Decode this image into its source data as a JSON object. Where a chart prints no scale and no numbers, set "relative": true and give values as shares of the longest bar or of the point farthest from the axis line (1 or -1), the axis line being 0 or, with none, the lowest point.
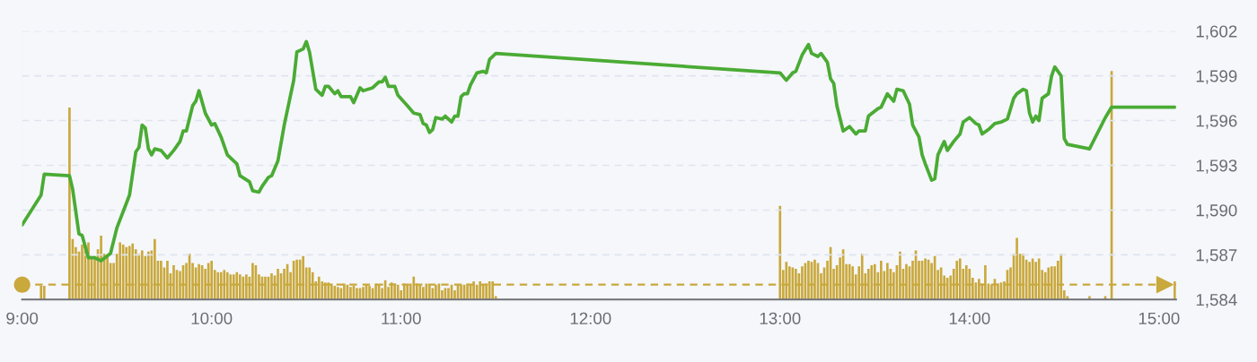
{
  "chart_data": [
    {
      "type": "line",
      "xlim": [
        9,
        15.09
      ],
      "xticks": [
        {
          "value": 9,
          "label": "9:00"
        },
        {
          "value": 10,
          "label": "10:00"
        },
        {
          "value": 11,
          "label": "11:00"
        },
        {
          "value": 12,
          "label": "12:00"
        },
        {
          "value": 13,
          "label": "13:00"
        },
        {
          "value": 14,
          "label": "14:00"
        },
        {
          "value": 15,
          "label": "15:00"
        }
      ],
      "ylim": [
        1584,
        1602
      ],
      "yticks": [
        {
          "value": 1584,
          "label": "1,584"
        },
        {
          "value": 1587,
          "label": "1,587"
        },
        {
          "value": 1590,
          "label": "1,590"
        },
        {
          "value": 1593,
          "label": "1,593"
        },
        {
          "value": 1596,
          "label": "1,596"
        },
        {
          "value": 1599,
          "label": "1,599"
        },
        {
          "value": 1602,
          "label": "1,602"
        }
      ],
      "grid": "y",
      "ref_lines": [
        {
          "axis": "y",
          "value": 1585,
          "color": "#c9a83c",
          "line_style": "dashed"
        }
      ],
      "series": [
        {
          "color": "#4aab34",
          "x": [
            9,
            9.1,
            9.1167,
            9.25,
            9.2667,
            9.3,
            9.3167,
            9.35,
            9.3833,
            9.4167,
            9.4667,
            9.5,
            9.5667,
            9.6,
            9.6167,
            9.6333,
            9.65,
            9.6667,
            9.6833,
            9.7,
            9.7333,
            9.7667,
            9.8,
            9.8333,
            9.85,
            9.8667,
            9.9,
            9.9167,
            9.9333,
            9.9667,
            10,
            10.0167,
            10.05,
            10.0833,
            10.1333,
            10.15,
            10.2,
            10.2167,
            10.25,
            10.2667,
            10.3,
            10.3167,
            10.35,
            10.3833,
            10.4333,
            10.45,
            10.4833,
            10.5,
            10.5167,
            10.55,
            10.5833,
            10.6,
            10.6167,
            10.65,
            10.6667,
            10.6833,
            10.7333,
            10.75,
            10.7833,
            10.8,
            10.85,
            10.8833,
            10.9,
            10.9167,
            10.9333,
            10.9667,
            10.9833,
            11.0333,
            11.0667,
            11.1,
            11.1167,
            11.1333,
            11.15,
            11.1667,
            11.1833,
            11.2167,
            11.2333,
            11.2667,
            11.2833,
            11.3,
            11.3167,
            11.3333,
            11.35,
            11.3667,
            11.4,
            11.4333,
            11.45,
            11.4667,
            11.5,
            13,
            13.0333,
            13.0667,
            13.0833,
            13.1167,
            13.15,
            13.1667,
            13.2,
            13.2167,
            13.25,
            13.2667,
            13.2833,
            13.3,
            13.3333,
            13.3667,
            13.4,
            13.4167,
            13.45,
            13.4667,
            13.5167,
            13.5333,
            13.5667,
            13.6,
            13.6167,
            13.65,
            13.6833,
            13.7,
            13.7333,
            13.75,
            13.7667,
            13.8,
            13.8167,
            13.8333,
            13.8667,
            13.8833,
            13.9167,
            13.95,
            13.9667,
            14,
            14.0333,
            14.05,
            14.0667,
            14.1,
            14.1333,
            14.1667,
            14.2,
            14.2333,
            14.25,
            14.2833,
            14.3,
            14.3167,
            14.3333,
            14.35,
            14.3667,
            14.3833,
            14.4167,
            14.4333,
            14.45,
            14.4833,
            14.5,
            14.5167,
            14.6333,
            14.7167,
            14.75,
            15.0833
          ],
          "values": [
            1589.0,
            1591.0,
            1592.4,
            1592.3,
            1591.4,
            1588.4,
            1588.3,
            1586.8,
            1586.8,
            1586.6,
            1587.1,
            1588.8,
            1591.0,
            1593.9,
            1594.2,
            1595.7,
            1595.5,
            1594.1,
            1593.7,
            1594.1,
            1594.0,
            1593.5,
            1594.0,
            1594.6,
            1595.3,
            1595.3,
            1597.0,
            1597.3,
            1598.0,
            1596.5,
            1595.7,
            1595.8,
            1594.9,
            1593.7,
            1593.1,
            1592.3,
            1591.9,
            1591.3,
            1591.2,
            1591.6,
            1592.2,
            1592.3,
            1593.3,
            1595.7,
            1598.7,
            1600.6,
            1600.8,
            1601.3,
            1600.6,
            1598.1,
            1597.7,
            1598.3,
            1598.3,
            1597.8,
            1598.0,
            1597.6,
            1597.6,
            1597.2,
            1598.2,
            1598.0,
            1598.2,
            1598.6,
            1598.6,
            1598.9,
            1598.3,
            1598.3,
            1597.7,
            1597.0,
            1596.5,
            1596.4,
            1595.8,
            1595.7,
            1595.2,
            1595.4,
            1596.2,
            1596.1,
            1596.3,
            1595.9,
            1596.3,
            1596.3,
            1597.6,
            1597.8,
            1597.8,
            1598.4,
            1599.2,
            1599.3,
            1599.2,
            1600.1,
            1600.5,
            1599.2,
            1598.7,
            1599.2,
            1599.3,
            1600.4,
            1601.1,
            1600.5,
            1600.3,
            1600.5,
            1599.9,
            1598.8,
            1598.5,
            1597.0,
            1595.3,
            1595.6,
            1595.1,
            1595.3,
            1595.3,
            1596.3,
            1596.8,
            1596.9,
            1597.8,
            1597.3,
            1598.1,
            1598.0,
            1597.1,
            1595.7,
            1594.9,
            1593.7,
            1593.1,
            1592.0,
            1592.1,
            1593.7,
            1594.6,
            1594.0,
            1594.6,
            1595.1,
            1595.9,
            1596.2,
            1595.8,
            1595.7,
            1595.1,
            1595.4,
            1595.8,
            1595.9,
            1596.1,
            1597.5,
            1597.8,
            1598.1,
            1598.0,
            1596.5,
            1595.9,
            1596.3,
            1596.0,
            1597.5,
            1597.8,
            1599.0,
            1599.6,
            1599.0,
            1594.8,
            1594.4,
            1594.1,
            1596.2,
            1596.9,
            1596.9
          ]
        }
      ]
    },
    {
      "type": "bar",
      "relative": true,
      "tick_labels": false,
      "xlim": [
        9,
        15.09
      ],
      "series": [
        {
          "color": "#c9a83c",
          "x": [
            9.1,
            9.1167,
            9.25,
            9.2667,
            9.2833,
            9.3,
            9.3167,
            9.3333,
            9.35,
            9.3667,
            9.3833,
            9.4,
            9.4167,
            9.4333,
            9.45,
            9.4667,
            9.4833,
            9.5,
            9.5167,
            9.5333,
            9.55,
            9.5667,
            9.5833,
            9.6,
            9.6167,
            9.6333,
            9.65,
            9.6667,
            9.6833,
            9.7,
            9.7167,
            9.7333,
            9.75,
            9.7667,
            9.7833,
            9.8,
            9.8167,
            9.8333,
            9.85,
            9.8667,
            9.8833,
            9.9,
            9.9167,
            9.9333,
            9.95,
            9.9667,
            9.9833,
            10,
            10.0167,
            10.0333,
            10.05,
            10.0667,
            10.0833,
            10.1,
            10.1167,
            10.1333,
            10.15,
            10.1667,
            10.1833,
            10.2,
            10.2167,
            10.2333,
            10.25,
            10.2667,
            10.2833,
            10.3,
            10.3167,
            10.3333,
            10.35,
            10.3667,
            10.3833,
            10.4,
            10.4167,
            10.4333,
            10.45,
            10.4667,
            10.4833,
            10.5,
            10.5167,
            10.5333,
            10.55,
            10.5667,
            10.5833,
            10.6,
            10.6167,
            10.6333,
            10.65,
            10.6667,
            10.6833,
            10.7,
            10.7167,
            10.7333,
            10.75,
            10.7667,
            10.7833,
            10.8,
            10.8167,
            10.8333,
            10.85,
            10.8667,
            10.8833,
            10.9,
            10.9167,
            10.9333,
            10.95,
            10.9667,
            10.9833,
            11,
            11.0167,
            11.0333,
            11.05,
            11.0667,
            11.0833,
            11.1,
            11.1167,
            11.1333,
            11.15,
            11.1667,
            11.1833,
            11.2,
            11.2167,
            11.2333,
            11.25,
            11.2667,
            11.2833,
            11.3,
            11.3167,
            11.3333,
            11.35,
            11.3667,
            11.3833,
            11.4,
            11.4167,
            11.4333,
            11.45,
            11.4667,
            11.4833,
            11.5,
            13,
            13.0167,
            13.0333,
            13.05,
            13.0667,
            13.0833,
            13.1,
            13.1167,
            13.1333,
            13.15,
            13.1667,
            13.1833,
            13.2,
            13.2167,
            13.2333,
            13.25,
            13.2667,
            13.2833,
            13.3,
            13.3167,
            13.3333,
            13.35,
            13.3667,
            13.3833,
            13.4,
            13.4167,
            13.4333,
            13.45,
            13.4667,
            13.4833,
            13.5,
            13.5167,
            13.5333,
            13.55,
            13.5667,
            13.5833,
            13.6,
            13.6167,
            13.6333,
            13.65,
            13.6667,
            13.6833,
            13.7,
            13.7167,
            13.7333,
            13.75,
            13.7667,
            13.7833,
            13.8,
            13.8167,
            13.8333,
            13.85,
            13.8667,
            13.8833,
            13.9,
            13.9167,
            13.9333,
            13.95,
            13.9667,
            13.9833,
            14,
            14.0167,
            14.0333,
            14.05,
            14.0667,
            14.0833,
            14.1,
            14.1167,
            14.1333,
            14.15,
            14.1667,
            14.1833,
            14.2,
            14.2167,
            14.2333,
            14.25,
            14.2667,
            14.2833,
            14.3,
            14.3167,
            14.3333,
            14.35,
            14.3667,
            14.3833,
            14.4,
            14.4167,
            14.4333,
            14.45,
            14.4667,
            14.4833,
            14.5,
            14.5167,
            14.6333,
            14.7167,
            14.75,
            15.0833
          ],
          "values": [
            0.06,
            0.06,
            0.84,
            0.265,
            0.23,
            0.21,
            0.24,
            0.23,
            0.25,
            0.19,
            0.19,
            0.22,
            0.28,
            0.2,
            0.19,
            0.16,
            0.16,
            0.2,
            0.25,
            0.24,
            0.23,
            0.235,
            0.245,
            0.22,
            0.2,
            0.215,
            0.19,
            0.21,
            0.215,
            0.265,
            0.17,
            0.17,
            0.14,
            0.17,
            0.115,
            0.15,
            0.13,
            0.125,
            0.15,
            0.16,
            0.2,
            0.16,
            0.14,
            0.155,
            0.15,
            0.135,
            0.16,
            0.17,
            0.13,
            0.12,
            0.12,
            0.13,
            0.12,
            0.11,
            0.11,
            0.12,
            0.11,
            0.1,
            0.11,
            0.1,
            0.16,
            0.15,
            0.11,
            0.1,
            0.1,
            0.1,
            0.115,
            0.105,
            0.135,
            0.115,
            0.135,
            0.155,
            0.12,
            0.17,
            0.175,
            0.175,
            0.19,
            0.14,
            0.14,
            0.12,
            0.08,
            0.1,
            0.08,
            0.075,
            0.075,
            0.07,
            0.06,
            0.055,
            0.05,
            0.07,
            0.065,
            0.055,
            0.06,
            0.05,
            0.05,
            0.055,
            0.065,
            0.06,
            0.05,
            0.07,
            0.065,
            0.05,
            0.085,
            0.055,
            0.075,
            0.07,
            0.065,
            0.04,
            0.07,
            0.065,
            0.07,
            0.1,
            0.07,
            0.065,
            0.055,
            0.07,
            0.065,
            0.05,
            0.065,
            0.07,
            0.04,
            0.05,
            0.05,
            0.065,
            0.04,
            0.065,
            0.065,
            0.065,
            0.07,
            0.065,
            0.08,
            0.065,
            0.08,
            0.065,
            0.07,
            0.08,
            0.08,
            0.015,
            0.41,
            0.13,
            0.165,
            0.145,
            0.14,
            0.135,
            0.115,
            0.145,
            0.16,
            0.17,
            0.165,
            0.175,
            0.16,
            0.115,
            0.14,
            0.17,
            0.23,
            0.135,
            0.15,
            0.185,
            0.22,
            0.155,
            0.155,
            0.145,
            0.11,
            0.145,
            0.2,
            0.115,
            0.135,
            0.15,
            0.155,
            0.12,
            0.17,
            0.125,
            0.16,
            0.135,
            0.12,
            0.15,
            0.21,
            0.135,
            0.155,
            0.145,
            0.17,
            0.215,
            0.17,
            0.17,
            0.18,
            0.175,
            0.16,
            0.19,
            0.13,
            0.14,
            0.105,
            0.095,
            0.105,
            0.135,
            0.17,
            0.18,
            0.135,
            0.15,
            0.135,
            0.095,
            0.075,
            0.09,
            0.07,
            0.15,
            0.07,
            0.065,
            0.09,
            0.07,
            0.075,
            0.08,
            0.13,
            0.14,
            0.2,
            0.27,
            0.2,
            0.2,
            0.175,
            0.165,
            0.18,
            0.165,
            0.18,
            0.13,
            0.12,
            0.14,
            0.145,
            0.145,
            0.17,
            0.2,
            0.04,
            0.015,
            0.015,
            0.015,
            1,
            0.08
          ]
        }
      ]
    }
  ]
}
